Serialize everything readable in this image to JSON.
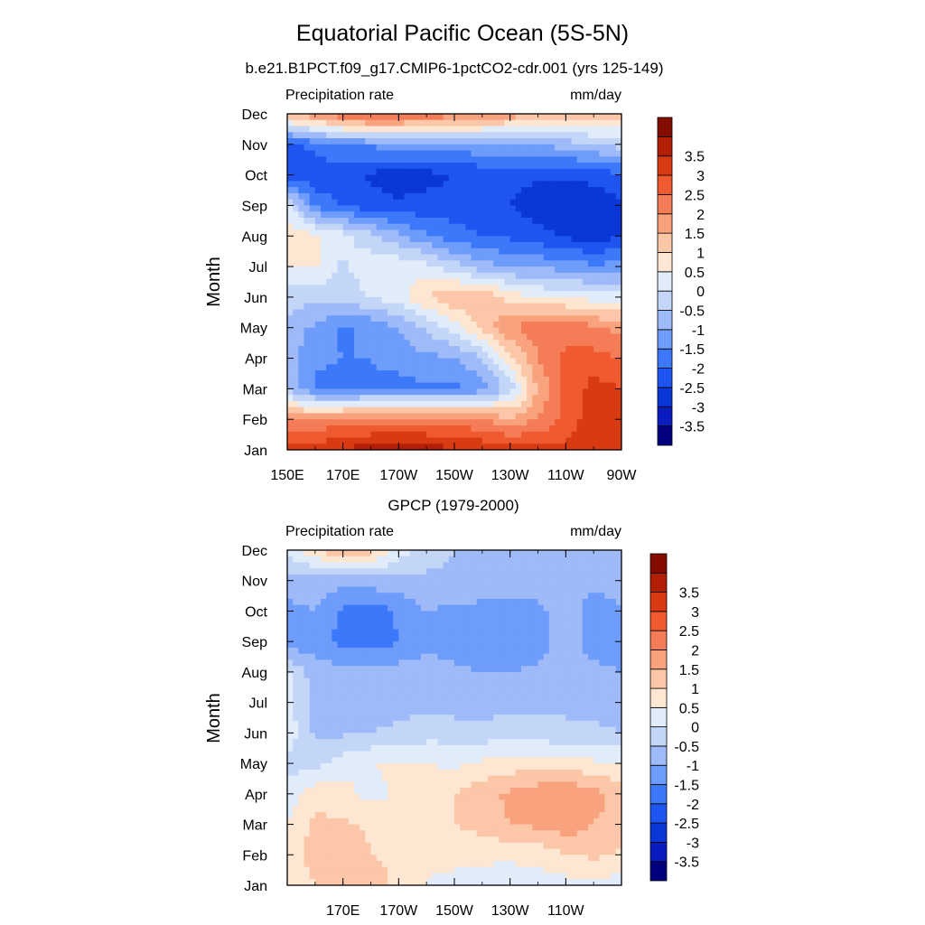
{
  "figure": {
    "title": "Equatorial Pacific Ocean (5S-5N)",
    "subtitle": "b.e21.B1PCT.f09_g17.CMIP6-1pctCO2-cdr.001 (yrs 125-149)"
  },
  "colors": {
    "scale": [
      "#00007f",
      "#0a1cbf",
      "#0a37d8",
      "#1e55f0",
      "#3c78fa",
      "#6e9cfa",
      "#9ebaf8",
      "#c3d6f8",
      "#e1ecfb",
      "#fde6d2",
      "#fbc7a8",
      "#f8a27e",
      "#f47d57",
      "#f05a30",
      "#d83a12",
      "#b21f06",
      "#850d00"
    ]
  },
  "chart_data": [
    {
      "type": "heatmap",
      "title": "",
      "corner_left": "Precipitation rate",
      "corner_right": "mm/day",
      "xlabel": "",
      "ylabel": "Month",
      "x_ticks": [
        "150E",
        "170E",
        "170W",
        "150W",
        "130W",
        "110W",
        "90W"
      ],
      "x_values": [
        150,
        170,
        190,
        210,
        230,
        250,
        270
      ],
      "xlim": [
        150,
        270
      ],
      "y_ticks": [
        "Jan",
        "Feb",
        "Mar",
        "Apr",
        "May",
        "Jun",
        "Jul",
        "Aug",
        "Sep",
        "Oct",
        "Nov",
        "Dec"
      ],
      "colorbar_labels": [
        "-3.5",
        "-3",
        "-2.5",
        "-2",
        "-1.5",
        "-1",
        "-0.5",
        "0",
        "0.5",
        "1",
        "1.5",
        "2",
        "2.5",
        "3",
        "3.5"
      ],
      "levels": [
        -3.5,
        -3,
        -2.5,
        -2,
        -1.5,
        -1,
        -0.5,
        0,
        0.5,
        1,
        1.5,
        2,
        2.5,
        3,
        3.5
      ],
      "approx_grid": {
        "x": [
          150,
          160,
          170,
          180,
          190,
          200,
          210,
          220,
          230,
          240,
          250,
          260,
          270
        ],
        "values": [
          [
            3.2,
            3.3,
            3.6,
            3.7,
            3.7,
            3.7,
            3.6,
            3.4,
            3.3,
            3.2,
            3.1,
            3.2,
            3.2
          ],
          [
            1.9,
            2.0,
            2.2,
            2.3,
            2.3,
            2.3,
            2.2,
            2.0,
            1.6,
            2.0,
            2.7,
            3.3,
            3.2
          ],
          [
            -0.6,
            -1.6,
            -1.8,
            -1.6,
            -1.7,
            -1.6,
            -1.6,
            -1.3,
            -0.3,
            1.6,
            2.6,
            3.2,
            3.0
          ],
          [
            -0.8,
            -1.4,
            -1.5,
            -1.5,
            -1.3,
            -1.1,
            -1.1,
            -0.5,
            0.8,
            2.0,
            2.6,
            2.7,
            2.5
          ],
          [
            -0.7,
            -1.1,
            -1.6,
            -1.4,
            -1.0,
            -0.4,
            0.3,
            1.2,
            2.0,
            2.3,
            2.4,
            2.1,
            1.8
          ],
          [
            -0.2,
            -0.4,
            -0.2,
            0.0,
            0.3,
            1.0,
            1.4,
            1.4,
            0.8,
            0.5,
            0.4,
            0.3,
            0.3
          ],
          [
            0.5,
            0.6,
            -0.1,
            0.3,
            0.4,
            0.2,
            -0.3,
            -0.8,
            -1.0,
            -1.1,
            -1.2,
            -1.4,
            -1.3
          ],
          [
            0.9,
            0.6,
            0.2,
            -0.3,
            -0.9,
            -1.4,
            -1.8,
            -2.0,
            -2.1,
            -2.3,
            -2.6,
            -2.8,
            -2.5
          ],
          [
            0.2,
            -1.6,
            -2.1,
            -2.3,
            -2.4,
            -2.3,
            -2.3,
            -2.2,
            -2.5,
            -2.8,
            -3.0,
            -2.9,
            -2.6
          ],
          [
            -2.3,
            -2.4,
            -2.3,
            -2.6,
            -2.8,
            -2.7,
            -2.5,
            -2.4,
            -2.4,
            -2.4,
            -2.4,
            -2.3,
            -2.1
          ],
          [
            -2.2,
            -1.8,
            -1.5,
            -1.4,
            -1.2,
            -1.1,
            -1.2,
            -1.0,
            -1.0,
            -0.9,
            -0.8,
            -0.5,
            -0.3
          ],
          [
            1.5,
            2.0,
            2.5,
            2.8,
            2.7,
            2.5,
            2.2,
            2.0,
            1.8,
            1.6,
            1.5,
            1.3,
            1.2
          ]
        ]
      }
    },
    {
      "type": "heatmap",
      "title": "GPCP (1979-2000)",
      "corner_left": "Precipitation rate",
      "corner_right": "mm/day",
      "xlabel": "",
      "ylabel": "Month",
      "x_ticks": [
        "170E",
        "170W",
        "150W",
        "130W",
        "110W"
      ],
      "x_values": [
        170,
        190,
        210,
        230,
        250
      ],
      "xlim": [
        150,
        270
      ],
      "y_ticks": [
        "Jan",
        "Feb",
        "Mar",
        "Apr",
        "May",
        "Jun",
        "Jul",
        "Aug",
        "Sep",
        "Oct",
        "Nov",
        "Dec"
      ],
      "colorbar_labels": [
        "-3.5",
        "-3",
        "-2.5",
        "-2",
        "-1.5",
        "-1",
        "-0.5",
        "0",
        "0.5",
        "1",
        "1.5",
        "2",
        "2.5",
        "3",
        "3.5"
      ],
      "levels": [
        -3.5,
        -3,
        -2.5,
        -2,
        -1.5,
        -1,
        -0.5,
        0,
        0.5,
        1,
        1.5,
        2,
        2.5,
        3,
        3.5
      ],
      "approx_grid": {
        "x": [
          150,
          160,
          170,
          180,
          190,
          200,
          210,
          220,
          230,
          240,
          250,
          260,
          270
        ],
        "values": [
          [
            0.7,
            1.0,
            1.5,
            1.3,
            0.8,
            0.5,
            0.3,
            0.3,
            0.2,
            0.2,
            0.3,
            0.3,
            0.3
          ],
          [
            0.8,
            1.2,
            1.4,
            1.0,
            0.9,
            0.6,
            0.7,
            0.6,
            0.6,
            0.7,
            1.0,
            1.1,
            0.9
          ],
          [
            0.5,
            1.1,
            1.1,
            0.9,
            0.9,
            0.9,
            1.0,
            1.2,
            1.5,
            1.6,
            1.8,
            1.5,
            1.3
          ],
          [
            0.2,
            0.8,
            0.7,
            0.3,
            0.6,
            0.7,
            1.0,
            1.3,
            1.6,
            1.8,
            1.9,
            1.7,
            1.3
          ],
          [
            -0.2,
            -0.2,
            0.3,
            0.5,
            0.6,
            0.5,
            0.4,
            0.6,
            0.7,
            0.8,
            0.8,
            0.6,
            0.5
          ],
          [
            0.3,
            -0.6,
            -0.6,
            -0.5,
            -0.4,
            -0.2,
            -0.2,
            -0.3,
            -0.2,
            -0.3,
            -0.4,
            -0.4,
            -0.5
          ],
          [
            0.2,
            -0.6,
            -0.7,
            -0.7,
            -0.7,
            -0.7,
            -0.8,
            -0.8,
            -0.7,
            -0.7,
            -0.6,
            -0.7,
            -0.8
          ],
          [
            0.1,
            -0.8,
            -0.8,
            -0.8,
            -0.8,
            -0.8,
            -0.9,
            -1.0,
            -1.0,
            -0.9,
            -0.8,
            -0.9,
            -1.0
          ],
          [
            -1.4,
            -1.2,
            -1.7,
            -1.8,
            -1.5,
            -1.1,
            -1.2,
            -1.4,
            -1.4,
            -1.2,
            -0.8,
            -1.2,
            -1.1
          ],
          [
            -1.1,
            -1.0,
            -1.6,
            -1.8,
            -1.4,
            -1.0,
            -1.1,
            -1.2,
            -1.2,
            -1.1,
            -0.8,
            -1.2,
            -1.0
          ],
          [
            -0.8,
            -0.8,
            -0.8,
            -0.7,
            -0.7,
            -0.6,
            -0.6,
            -0.6,
            -0.6,
            -0.8,
            -0.8,
            -0.9,
            -0.9
          ],
          [
            0.2,
            1.0,
            1.5,
            1.2,
            0.3,
            -0.3,
            -0.5,
            -0.6,
            -0.5,
            -0.6,
            -0.7,
            -0.7,
            -0.7
          ]
        ]
      }
    }
  ]
}
